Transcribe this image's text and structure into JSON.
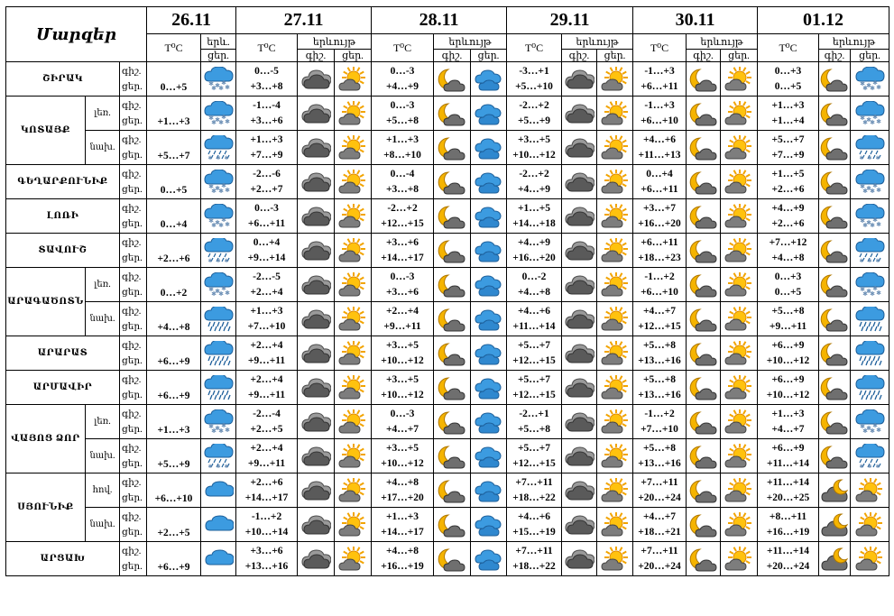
{
  "header": {
    "regions_label": "Մարզեր",
    "dates": [
      "26.11",
      "27.11",
      "28.11",
      "29.11",
      "30.11",
      "01.12"
    ],
    "temp_label": "T⁰C",
    "weather_label_short": "երև.",
    "weather_label": "երևույթ",
    "night": "գիշ.",
    "day": "ցեր.",
    "day_short": "ցեր.",
    "night_dot": "գիշ."
  },
  "rows": [
    {
      "region": "ՇԻՐԱԿ",
      "sub": "",
      "d0": {
        "t": "0…+5",
        "ic": "snow-cloud-icon"
      },
      "days": [
        {
          "n": "0…-5",
          "d": "+3…+8",
          "i1": "dark-cloud-icon",
          "i2": "sun-cloud-icon"
        },
        {
          "n": "0…-3",
          "d": "+4…+9",
          "i1": "moon-cloud-icon",
          "i2": "sun-cloud-blue-icon"
        },
        {
          "n": "-3…+1",
          "d": "+5…+10",
          "i1": "dark-cloud-icon",
          "i2": "sun-cloud-icon"
        },
        {
          "n": "-1…+3",
          "d": "+6…+11",
          "i1": "moon-cloud-icon",
          "i2": "sun-cloud-icon"
        },
        {
          "n": "0…+3",
          "d": "0…+5",
          "i1": "moon-cloud-icon",
          "i2": "snow-cloud-icon"
        }
      ]
    },
    {
      "region": "ԿՈՏԱՅՔ",
      "sub": "լեռ.",
      "d0": {
        "t": "+1…+3",
        "ic": "snow-cloud-icon"
      },
      "days": [
        {
          "n": "-1…-4",
          "d": "+3…+6",
          "i1": "dark-cloud-icon",
          "i2": "sun-cloud-icon"
        },
        {
          "n": "0…-3",
          "d": "+5…+8",
          "i1": "moon-cloud-icon",
          "i2": "sun-cloud-blue-icon"
        },
        {
          "n": "-2…+2",
          "d": "+5…+9",
          "i1": "dark-cloud-icon",
          "i2": "sun-cloud-icon"
        },
        {
          "n": "-1…+3",
          "d": "+6…+10",
          "i1": "moon-cloud-icon",
          "i2": "sun-cloud-icon"
        },
        {
          "n": "+1…+3",
          "d": "+1…+4",
          "i1": "moon-cloud-icon",
          "i2": "snow-cloud-icon"
        }
      ]
    },
    {
      "region": "",
      "sub": "նախ.",
      "d0": {
        "t": "+5…+7",
        "ic": "rain-snow-icon"
      },
      "days": [
        {
          "n": "+1…+3",
          "d": "+7…+9",
          "i1": "dark-cloud-icon",
          "i2": "sun-cloud-icon"
        },
        {
          "n": "+1…+3",
          "d": "+8…+10",
          "i1": "moon-cloud-icon",
          "i2": "sun-cloud-blue-icon"
        },
        {
          "n": "+3…+5",
          "d": "+10…+12",
          "i1": "dark-cloud-icon",
          "i2": "sun-cloud-icon"
        },
        {
          "n": "+4…+6",
          "d": "+11…+13",
          "i1": "moon-cloud-icon",
          "i2": "sun-cloud-icon"
        },
        {
          "n": "+5…+7",
          "d": "+7…+9",
          "i1": "moon-cloud-icon",
          "i2": "rain-snow-icon"
        }
      ]
    },
    {
      "region": "ԳԵՂԱՐՔՈՒՆԻՔ",
      "sub": "",
      "d0": {
        "t": "0…+5",
        "ic": "snow-cloud-icon"
      },
      "days": [
        {
          "n": "-2…-6",
          "d": "+2…+7",
          "i1": "dark-cloud-icon",
          "i2": "sun-cloud-icon"
        },
        {
          "n": "0…-4",
          "d": "+3…+8",
          "i1": "moon-cloud-icon",
          "i2": "sun-cloud-blue-icon"
        },
        {
          "n": "-2…+2",
          "d": "+4…+9",
          "i1": "dark-cloud-icon",
          "i2": "sun-cloud-icon"
        },
        {
          "n": "0…+4",
          "d": "+6…+11",
          "i1": "moon-cloud-icon",
          "i2": "sun-cloud-icon"
        },
        {
          "n": "+1…+5",
          "d": "+2…+6",
          "i1": "moon-cloud-icon",
          "i2": "snow-cloud-icon"
        }
      ]
    },
    {
      "region": "ԼՈՌԻ",
      "sub": "",
      "d0": {
        "t": "0…+4",
        "ic": "snow-cloud-icon"
      },
      "days": [
        {
          "n": "0…-3",
          "d": "+6…+11",
          "i1": "dark-cloud-icon",
          "i2": "sun-cloud-icon"
        },
        {
          "n": "-2…+2",
          "d": "+12…+15",
          "i1": "moon-cloud-icon",
          "i2": "sun-cloud-blue-icon"
        },
        {
          "n": "+1…+5",
          "d": "+14…+18",
          "i1": "dark-cloud-icon",
          "i2": "sun-cloud-icon"
        },
        {
          "n": "+3…+7",
          "d": "+16…+20",
          "i1": "moon-cloud-icon",
          "i2": "sun-cloud-icon"
        },
        {
          "n": "+4…+9",
          "d": "+2…+6",
          "i1": "moon-cloud-icon",
          "i2": "snow-cloud-icon"
        }
      ]
    },
    {
      "region": "ՏԱՎՈՒՇ",
      "sub": "",
      "d0": {
        "t": "+2…+6",
        "ic": "rain-snow-icon"
      },
      "days": [
        {
          "n": "0…+4",
          "d": "+9…+14",
          "i1": "dark-cloud-icon",
          "i2": "sun-cloud-icon"
        },
        {
          "n": "+3…+6",
          "d": "+14…+17",
          "i1": "moon-cloud-icon",
          "i2": "sun-cloud-blue-icon"
        },
        {
          "n": "+4…+9",
          "d": "+16…+20",
          "i1": "dark-cloud-icon",
          "i2": "sun-cloud-icon"
        },
        {
          "n": "+6…+11",
          "d": "+18…+23",
          "i1": "moon-cloud-icon",
          "i2": "sun-cloud-icon"
        },
        {
          "n": "+7…+12",
          "d": "+4…+8",
          "i1": "moon-cloud-icon",
          "i2": "rain-snow-icon"
        }
      ]
    },
    {
      "region": "ԱՐԱԳԱԾՈՏՆ",
      "sub": "լեռ.",
      "d0": {
        "t": "0…+2",
        "ic": "snow-cloud-icon"
      },
      "days": [
        {
          "n": "-2…-5",
          "d": "+2…+4",
          "i1": "dark-cloud-icon",
          "i2": "sun-cloud-icon"
        },
        {
          "n": "0…-3",
          "d": "+3…+6",
          "i1": "moon-cloud-icon",
          "i2": "sun-cloud-blue-icon"
        },
        {
          "n": "0…-2",
          "d": "+4…+8",
          "i1": "dark-cloud-icon",
          "i2": "sun-cloud-icon"
        },
        {
          "n": "-1…+2",
          "d": "+6…+10",
          "i1": "moon-cloud-icon",
          "i2": "sun-cloud-icon"
        },
        {
          "n": "0…+3",
          "d": "0…+5",
          "i1": "moon-cloud-icon",
          "i2": "snow-cloud-icon"
        }
      ]
    },
    {
      "region": "",
      "sub": "նախ.",
      "d0": {
        "t": "+4…+8",
        "ic": "rain-cloud-icon"
      },
      "days": [
        {
          "n": "+1…+3",
          "d": "+7…+10",
          "i1": "dark-cloud-icon",
          "i2": "sun-cloud-icon"
        },
        {
          "n": "+2…+4",
          "d": "+9…+11",
          "i1": "moon-cloud-icon",
          "i2": "sun-cloud-blue-icon"
        },
        {
          "n": "+4…+6",
          "d": "+11…+14",
          "i1": "dark-cloud-icon",
          "i2": "sun-cloud-icon"
        },
        {
          "n": "+4…+7",
          "d": "+12…+15",
          "i1": "moon-cloud-icon",
          "i2": "sun-cloud-icon"
        },
        {
          "n": "+5…+8",
          "d": "+9…+11",
          "i1": "moon-cloud-icon",
          "i2": "rain-cloud-icon"
        }
      ]
    },
    {
      "region": "ԱՐԱՐԱՏ",
      "sub": "",
      "d0": {
        "t": "+6…+9",
        "ic": "rain-cloud-icon"
      },
      "days": [
        {
          "n": "+2…+4",
          "d": "+9…+11",
          "i1": "dark-cloud-icon",
          "i2": "sun-cloud-icon"
        },
        {
          "n": "+3…+5",
          "d": "+10…+12",
          "i1": "moon-cloud-icon",
          "i2": "sun-cloud-blue-icon"
        },
        {
          "n": "+5…+7",
          "d": "+12…+15",
          "i1": "dark-cloud-icon",
          "i2": "sun-cloud-icon"
        },
        {
          "n": "+5…+8",
          "d": "+13…+16",
          "i1": "moon-cloud-icon",
          "i2": "sun-cloud-icon"
        },
        {
          "n": "+6…+9",
          "d": "+10…+12",
          "i1": "moon-cloud-icon",
          "i2": "rain-cloud-icon"
        }
      ]
    },
    {
      "region": "ԱՐՄԱՎԻՐ",
      "sub": "",
      "d0": {
        "t": "+6…+9",
        "ic": "rain-cloud-icon"
      },
      "days": [
        {
          "n": "+2…+4",
          "d": "+9…+11",
          "i1": "dark-cloud-icon",
          "i2": "sun-cloud-icon"
        },
        {
          "n": "+3…+5",
          "d": "+10…+12",
          "i1": "moon-cloud-icon",
          "i2": "sun-cloud-blue-icon"
        },
        {
          "n": "+5…+7",
          "d": "+12…+15",
          "i1": "dark-cloud-icon",
          "i2": "sun-cloud-icon"
        },
        {
          "n": "+5…+8",
          "d": "+13…+16",
          "i1": "moon-cloud-icon",
          "i2": "sun-cloud-icon"
        },
        {
          "n": "+6…+9",
          "d": "+10…+12",
          "i1": "moon-cloud-icon",
          "i2": "rain-cloud-icon"
        }
      ]
    },
    {
      "region": "ՎԱՅՈՑ ՁՈՐ",
      "sub": "լեռ.",
      "d0": {
        "t": "+1…+3",
        "ic": "snow-cloud-icon"
      },
      "days": [
        {
          "n": "-2…-4",
          "d": "+2…+5",
          "i1": "dark-cloud-icon",
          "i2": "sun-cloud-icon"
        },
        {
          "n": "0…-3",
          "d": "+4…+7",
          "i1": "moon-cloud-icon",
          "i2": "sun-cloud-blue-icon"
        },
        {
          "n": "-2…+1",
          "d": "+5…+8",
          "i1": "dark-cloud-icon",
          "i2": "sun-cloud-icon"
        },
        {
          "n": "-1…+2",
          "d": "+7…+10",
          "i1": "moon-cloud-icon",
          "i2": "sun-cloud-icon"
        },
        {
          "n": "+1…+3",
          "d": "+4…+7",
          "i1": "moon-cloud-icon",
          "i2": "snow-cloud-icon"
        }
      ]
    },
    {
      "region": "",
      "sub": "նախ.",
      "d0": {
        "t": "+5…+9",
        "ic": "rain-snow-icon"
      },
      "days": [
        {
          "n": "+2…+4",
          "d": "+9…+11",
          "i1": "dark-cloud-icon",
          "i2": "sun-cloud-icon"
        },
        {
          "n": "+3…+5",
          "d": "+10…+12",
          "i1": "moon-cloud-icon",
          "i2": "sun-cloud-blue-icon"
        },
        {
          "n": "+5…+7",
          "d": "+12…+15",
          "i1": "dark-cloud-icon",
          "i2": "sun-cloud-icon"
        },
        {
          "n": "+5…+8",
          "d": "+13…+16",
          "i1": "moon-cloud-icon",
          "i2": "sun-cloud-icon"
        },
        {
          "n": "+6…+9",
          "d": "+11…+14",
          "i1": "moon-cloud-icon",
          "i2": "rain-snow-icon"
        }
      ]
    },
    {
      "region": "ՍՅՈՒՆԻՔ",
      "sub": "հով.",
      "d0": {
        "t": "+6…+10",
        "ic": "blue-cloud-icon"
      },
      "days": [
        {
          "n": "+2…+6",
          "d": "+14…+17",
          "i1": "dark-cloud-icon",
          "i2": "sun-cloud-icon"
        },
        {
          "n": "+4…+8",
          "d": "+17…+20",
          "i1": "moon-cloud-icon",
          "i2": "sun-cloud-blue-icon"
        },
        {
          "n": "+7…+11",
          "d": "+18…+22",
          "i1": "dark-cloud-icon",
          "i2": "sun-cloud-icon"
        },
        {
          "n": "+7…+11",
          "d": "+20…+24",
          "i1": "moon-cloud-icon",
          "i2": "sun-cloud-icon"
        },
        {
          "n": "+11…+14",
          "d": "+20…+25",
          "i1": "dark-moon-icon",
          "i2": "sun-cloud-icon"
        }
      ]
    },
    {
      "region": "",
      "sub": "նախ.",
      "d0": {
        "t": "+2…+5",
        "ic": "blue-cloud-icon"
      },
      "days": [
        {
          "n": "-1…+2",
          "d": "+10…+14",
          "i1": "dark-cloud-icon",
          "i2": "sun-cloud-icon"
        },
        {
          "n": "+1…+3",
          "d": "+14…+17",
          "i1": "moon-cloud-icon",
          "i2": "sun-cloud-blue-icon"
        },
        {
          "n": "+4…+6",
          "d": "+15…+19",
          "i1": "dark-cloud-icon",
          "i2": "sun-cloud-icon"
        },
        {
          "n": "+4…+7",
          "d": "+18…+21",
          "i1": "moon-cloud-icon",
          "i2": "sun-cloud-icon"
        },
        {
          "n": "+8…+11",
          "d": "+16…+19",
          "i1": "dark-moon-icon",
          "i2": "sun-cloud-icon"
        }
      ]
    },
    {
      "region": "ԱՐՑԱԽ",
      "sub": "",
      "d0": {
        "t": "+6…+9",
        "ic": "blue-cloud-icon"
      },
      "days": [
        {
          "n": "+3…+6",
          "d": "+13…+16",
          "i1": "dark-cloud-icon",
          "i2": "sun-cloud-icon"
        },
        {
          "n": "+4…+8",
          "d": "+16…+19",
          "i1": "moon-cloud-icon",
          "i2": "sun-cloud-blue-icon"
        },
        {
          "n": "+7…+11",
          "d": "+18…+22",
          "i1": "dark-cloud-icon",
          "i2": "sun-cloud-icon"
        },
        {
          "n": "+7…+11",
          "d": "+20…+24",
          "i1": "moon-cloud-icon",
          "i2": "sun-cloud-icon"
        },
        {
          "n": "+11…+14",
          "d": "+20…+24",
          "i1": "dark-moon-icon",
          "i2": "sun-cloud-icon"
        }
      ]
    }
  ]
}
